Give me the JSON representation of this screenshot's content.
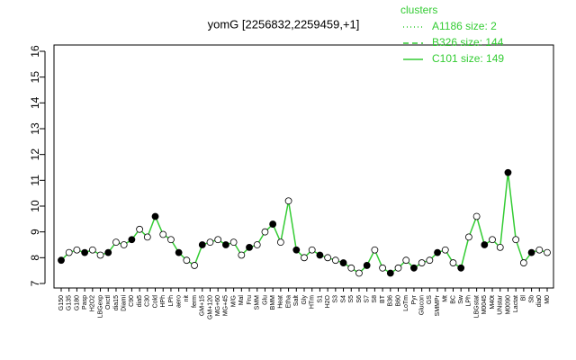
{
  "chart_data": {
    "type": "line",
    "title": "yomG [2256832,2259459,+1]",
    "legend_title": "clusters",
    "legend": [
      {
        "name": "A1186 size: 2",
        "dash": "dotted"
      },
      {
        "name": "B326 size: 144",
        "dash": "dashed"
      },
      {
        "name": "C101 size: 149",
        "dash": "solid"
      }
    ],
    "legend_color": "#33cc33",
    "legend_position": "top-right",
    "categories": [
      "G150",
      "G135",
      "G180",
      "Pasp",
      "H2O2",
      "LBGexp",
      "Oxctl",
      "dia15",
      "Diami",
      "C90",
      "dia5",
      "C30",
      "Cold",
      "HPh",
      "LPh",
      "aero",
      "nit",
      "ferm",
      "GM+15",
      "GM+120",
      "MG+60",
      "MG+45",
      "M/G",
      "Mal",
      "Fru",
      "SMM",
      "Glu",
      "BMM",
      "Heat",
      "Etha",
      "Salt",
      "Gly",
      "HTm",
      "S1",
      "H2O",
      "S3",
      "S4",
      "S5",
      "S6",
      "S7",
      "S8",
      "BT",
      "B36",
      "B60",
      "LoTm",
      "Pyr",
      "Glucon",
      "GS",
      "SMMPr",
      "Mt",
      "BC",
      "Sw",
      "LPh",
      "LBGstat",
      "M0045",
      "M40t",
      "UNstar",
      "M0090",
      "Lactat",
      "Bl",
      "Sb",
      "dia0",
      "M0"
    ],
    "series": [
      {
        "name": "C101",
        "color": "#33cc33",
        "values": [
          7.9,
          8.2,
          8.3,
          8.2,
          8.3,
          8.1,
          8.2,
          8.6,
          8.5,
          8.7,
          9.1,
          8.8,
          9.6,
          8.9,
          8.7,
          8.2,
          7.9,
          7.7,
          8.5,
          8.6,
          8.7,
          8.5,
          8.6,
          8.1,
          8.4,
          8.5,
          9.0,
          9.3,
          8.6,
          10.2,
          8.3,
          8.0,
          8.3,
          8.1,
          8.0,
          7.9,
          7.8,
          7.6,
          7.4,
          7.7,
          8.3,
          7.6,
          7.4,
          7.6,
          7.9,
          7.6,
          7.8,
          7.9,
          8.2,
          8.3,
          7.8,
          7.6,
          8.8,
          9.6,
          8.5,
          8.7,
          8.4,
          11.3,
          8.7,
          7.8,
          8.2,
          8.3,
          8.2
        ]
      }
    ],
    "ylim": [
      7,
      16
    ],
    "yticks": [
      7,
      8,
      9,
      10,
      11,
      12,
      13,
      14,
      15,
      16
    ]
  }
}
